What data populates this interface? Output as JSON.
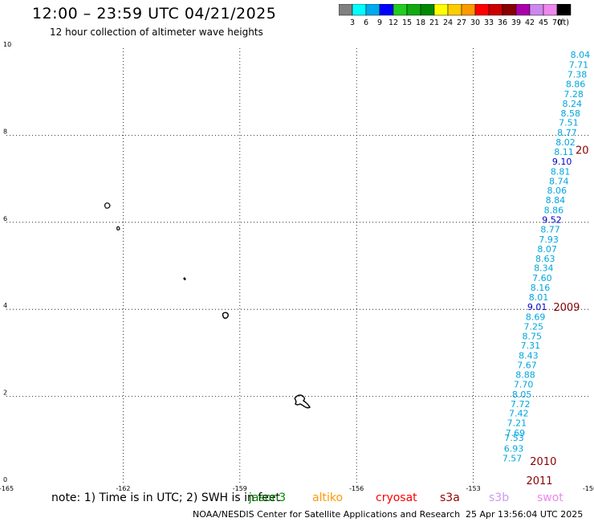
{
  "header": {
    "title": "12:00 – 23:59 UTC 04/21/2025",
    "subtitle": "12 hour collection of altimeter wave heights"
  },
  "colorbar": {
    "ticks": [
      "3",
      "6",
      "9",
      "12",
      "15",
      "18",
      "21",
      "24",
      "27",
      "30",
      "33",
      "36",
      "39",
      "42",
      "45",
      "70"
    ],
    "unit": "(ft)",
    "colors": [
      "#808080",
      "#00ffff",
      "#00aaee",
      "#0000ff",
      "#22cc22",
      "#11aa11",
      "#008800",
      "#ffff00",
      "#ffcc00",
      "#ff9900",
      "#ff0000",
      "#cc0000",
      "#880000",
      "#aa00aa",
      "#cc88ee",
      "#ee88ee",
      "#000000"
    ]
  },
  "footer": {
    "note": "note: 1) Time is in UTC; 2) SWH is in feet",
    "satellites": [
      {
        "label": "jason3",
        "color": "#008800"
      },
      {
        "label": "altiko",
        "color": "#ff9900"
      },
      {
        "label": "cryosat",
        "color": "#ff0000"
      },
      {
        "label": "s3a",
        "color": "#990000"
      },
      {
        "label": "s3b",
        "color": "#cc99ee"
      },
      {
        "label": "swot",
        "color": "#ee88ee"
      }
    ],
    "credit": "NOAA/NESDIS Center for Satellite Applications and Research",
    "timestamp": "25 Apr 13:56:04 UTC 2025"
  },
  "chart_data": {
    "type": "scatter",
    "xlim": [
      -165,
      -150
    ],
    "ylim": [
      0,
      10
    ],
    "x_ticks": [
      "-165",
      "-162",
      "-159",
      "-156",
      "-153",
      "-150"
    ],
    "y_ticks": [
      "0",
      "2",
      "4",
      "6",
      "8",
      "10"
    ],
    "grid": true,
    "points": [
      {
        "x": -150.25,
        "y": 9.85,
        "v": "8.04"
      },
      {
        "x": -150.29,
        "y": 9.62,
        "v": "7.71"
      },
      {
        "x": -150.33,
        "y": 9.4,
        "v": "7.38"
      },
      {
        "x": -150.37,
        "y": 9.18,
        "v": "8.86"
      },
      {
        "x": -150.42,
        "y": 8.95,
        "v": "7.28"
      },
      {
        "x": -150.46,
        "y": 8.73,
        "v": "8.24"
      },
      {
        "x": -150.5,
        "y": 8.51,
        "v": "8.58"
      },
      {
        "x": -150.55,
        "y": 8.29,
        "v": "7.51"
      },
      {
        "x": -150.59,
        "y": 8.06,
        "v": "8.77"
      },
      {
        "x": -150.63,
        "y": 7.84,
        "v": "8.02"
      },
      {
        "x": -150.67,
        "y": 7.62,
        "v": "8.11"
      },
      {
        "x": -150.72,
        "y": 7.4,
        "v": "9.10"
      },
      {
        "x": -150.76,
        "y": 7.17,
        "v": "8.81"
      },
      {
        "x": -150.8,
        "y": 6.95,
        "v": "8.74"
      },
      {
        "x": -150.85,
        "y": 6.73,
        "v": "8.06"
      },
      {
        "x": -150.89,
        "y": 6.51,
        "v": "8.84"
      },
      {
        "x": -150.93,
        "y": 6.28,
        "v": "8.86"
      },
      {
        "x": -150.98,
        "y": 6.06,
        "v": "9.52"
      },
      {
        "x": -151.02,
        "y": 5.84,
        "v": "8.77"
      },
      {
        "x": -151.06,
        "y": 5.61,
        "v": "7.93"
      },
      {
        "x": -151.1,
        "y": 5.39,
        "v": "8.07"
      },
      {
        "x": -151.15,
        "y": 5.17,
        "v": "8.63"
      },
      {
        "x": -151.19,
        "y": 4.95,
        "v": "8.34"
      },
      {
        "x": -151.23,
        "y": 4.72,
        "v": "7.60"
      },
      {
        "x": -151.28,
        "y": 4.5,
        "v": "8.16"
      },
      {
        "x": -151.32,
        "y": 4.28,
        "v": "8.01"
      },
      {
        "x": -151.36,
        "y": 4.06,
        "v": "9.01"
      },
      {
        "x": -151.4,
        "y": 3.83,
        "v": "8.69"
      },
      {
        "x": -151.45,
        "y": 3.61,
        "v": "7.25"
      },
      {
        "x": -151.49,
        "y": 3.39,
        "v": "8.75"
      },
      {
        "x": -151.53,
        "y": 3.17,
        "v": "7.31"
      },
      {
        "x": -151.58,
        "y": 2.94,
        "v": "8.43"
      },
      {
        "x": -151.62,
        "y": 2.72,
        "v": "7.67"
      },
      {
        "x": -151.66,
        "y": 2.5,
        "v": "8.88"
      },
      {
        "x": -151.71,
        "y": 2.28,
        "v": "7.70"
      },
      {
        "x": -151.75,
        "y": 2.05,
        "v": "8.05"
      },
      {
        "x": -151.79,
        "y": 1.83,
        "v": "7.72"
      },
      {
        "x": -151.83,
        "y": 1.61,
        "v": "7.42"
      },
      {
        "x": -151.88,
        "y": 1.39,
        "v": "7.21"
      },
      {
        "x": -151.92,
        "y": 1.16,
        "v": "7.69"
      },
      {
        "x": -151.95,
        "y": 1.05,
        "v": "7.53"
      },
      {
        "x": -151.96,
        "y": 0.8,
        "v": "6.93"
      },
      {
        "x": -152.0,
        "y": 0.58,
        "v": "7.57"
      }
    ],
    "time_labels": [
      {
        "x": -150.2,
        "y": 7.67,
        "text": "20"
      },
      {
        "x": -150.6,
        "y": 4.06,
        "text": "2009"
      },
      {
        "x": -151.2,
        "y": 0.52,
        "text": "2010"
      },
      {
        "x": -151.3,
        "y": 0.07,
        "text": "2011"
      }
    ]
  }
}
